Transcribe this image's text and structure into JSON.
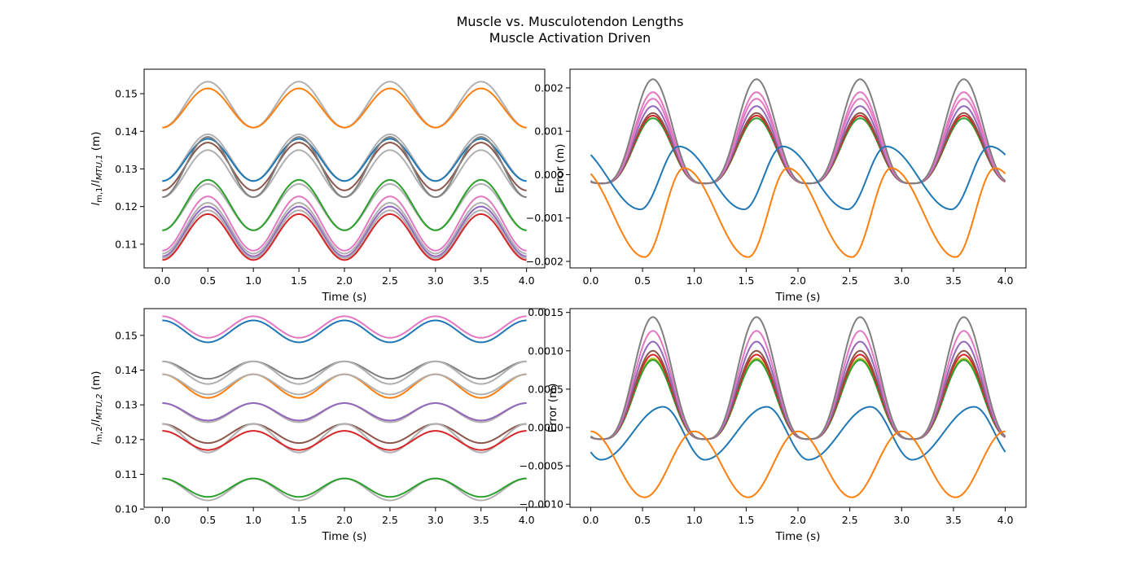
{
  "figure": {
    "title_line1": "Muscle vs. Musculotendon Lengths",
    "title_line2": "Muscle Activation Driven"
  },
  "chart_data": [
    {
      "type": "line",
      "id": "top-left",
      "xlabel": "Time (s)",
      "ylabel": "l_{m,1}/l_{MTU,1} (m)",
      "xlim": [
        -0.2,
        4.2
      ],
      "ylim": [
        0.1037,
        0.1565
      ],
      "xticks": [
        0.0,
        0.5,
        1.0,
        1.5,
        2.0,
        2.5,
        3.0,
        3.5,
        4.0
      ],
      "yticks": [
        0.11,
        0.12,
        0.13,
        0.14,
        0.15
      ],
      "tick_decimals": 2,
      "signals": [
        {
          "kind": "sin",
          "min": 0.141,
          "max": 0.1532,
          "period": 1.0,
          "peak": 0.5,
          "color": "#b0b0b0"
        },
        {
          "kind": "sin",
          "min": 0.141,
          "max": 0.1514,
          "period": 1.0,
          "peak": 0.5,
          "color": "#ff7f0e"
        },
        {
          "kind": "sin",
          "min": 0.1268,
          "max": 0.1392,
          "period": 1.0,
          "peak": 0.5,
          "color": "#b0b0b0"
        },
        {
          "kind": "sin",
          "min": 0.1268,
          "max": 0.138,
          "period": 1.0,
          "peak": 0.5,
          "color": "#1f77b4"
        },
        {
          "kind": "sin",
          "min": 0.1243,
          "max": 0.137,
          "period": 1.0,
          "peak": 0.5,
          "color": "#8c564b"
        },
        {
          "kind": "sin",
          "min": 0.1225,
          "max": 0.135,
          "period": 1.0,
          "peak": 0.5,
          "color": "#b0b0b0"
        },
        {
          "kind": "sin",
          "min": 0.1225,
          "max": 0.1385,
          "period": 1.0,
          "peak": 0.5,
          "color": "#7f7f7f"
        },
        {
          "kind": "sin",
          "min": 0.1137,
          "max": 0.126,
          "period": 1.0,
          "peak": 0.5,
          "color": "#b0b0b0"
        },
        {
          "kind": "sin",
          "min": 0.1137,
          "max": 0.1271,
          "period": 1.0,
          "peak": 0.5,
          "color": "#2ca02c"
        },
        {
          "kind": "sin",
          "min": 0.1083,
          "max": 0.1227,
          "period": 1.0,
          "peak": 0.5,
          "color": "#e377c2"
        },
        {
          "kind": "sin",
          "min": 0.1075,
          "max": 0.121,
          "period": 1.0,
          "peak": 0.5,
          "color": "#b0b0b0"
        },
        {
          "kind": "sin",
          "min": 0.1068,
          "max": 0.12,
          "period": 1.0,
          "peak": 0.5,
          "color": "#9467bd"
        },
        {
          "kind": "sin",
          "min": 0.1063,
          "max": 0.119,
          "period": 1.0,
          "peak": 0.5,
          "color": "#b0b0b0"
        },
        {
          "kind": "sin",
          "min": 0.1058,
          "max": 0.118,
          "period": 1.0,
          "peak": 0.5,
          "color": "#d62728"
        }
      ]
    },
    {
      "type": "line",
      "id": "top-right",
      "xlabel": "Time (s)",
      "ylabel": "Error (m)",
      "xlim": [
        -0.2,
        4.2
      ],
      "ylim": [
        -0.00215,
        0.00243
      ],
      "xticks": [
        0.0,
        0.5,
        1.0,
        1.5,
        2.0,
        2.5,
        3.0,
        3.5,
        4.0
      ],
      "yticks": [
        -0.002,
        -0.001,
        0.0,
        0.001,
        0.002
      ],
      "tick_decimals": 3,
      "signals": [
        {
          "kind": "err",
          "min": -0.0002,
          "max": 0.0013,
          "period": 1.0,
          "peak": 0.6,
          "color": "#2ca02c"
        },
        {
          "kind": "err",
          "min": -0.0002,
          "max": 0.00136,
          "period": 1.0,
          "peak": 0.6,
          "color": "#d62728"
        },
        {
          "kind": "err",
          "min": -0.0002,
          "max": 0.00142,
          "period": 1.0,
          "peak": 0.6,
          "color": "#8c564b"
        },
        {
          "kind": "err",
          "min": -0.0002,
          "max": 0.00158,
          "period": 1.0,
          "peak": 0.6,
          "color": "#9467bd"
        },
        {
          "kind": "err",
          "min": -0.0002,
          "max": 0.00175,
          "period": 1.0,
          "peak": 0.6,
          "color": "#e377c2"
        },
        {
          "kind": "err",
          "min": -0.0002,
          "max": 0.0019,
          "period": 1.0,
          "peak": 0.6,
          "color": "#e377c2"
        },
        {
          "kind": "err",
          "min": -0.0002,
          "max": 0.0022,
          "period": 1.0,
          "peak": 0.6,
          "color": "#7f7f7f"
        },
        {
          "kind": "err2",
          "min": -0.0008,
          "max": 0.00065,
          "period": 1.0,
          "peak": 0.85,
          "trough": 0.48,
          "color": "#1f77b4"
        },
        {
          "kind": "err2",
          "min": -0.0019,
          "max": 0.00015,
          "period": 1.0,
          "peak": 0.9,
          "trough": 0.52,
          "color": "#ff7f0e"
        }
      ]
    },
    {
      "type": "line",
      "id": "bottom-left",
      "xlabel": "Time (s)",
      "ylabel": "l_{m,2}/l_{MTU,2} (m)",
      "xlim": [
        -0.2,
        4.2
      ],
      "ylim": [
        0.1005,
        0.1577
      ],
      "xticks": [
        0.0,
        0.5,
        1.0,
        1.5,
        2.0,
        2.5,
        3.0,
        3.5,
        4.0
      ],
      "yticks": [
        0.1,
        0.11,
        0.12,
        0.13,
        0.14,
        0.15
      ],
      "tick_decimals": 2,
      "signals": [
        {
          "kind": "cos",
          "min": 0.1493,
          "max": 0.1555,
          "period": 1.0,
          "peak": 0.0,
          "color": "#e377c2"
        },
        {
          "kind": "cos",
          "min": 0.148,
          "max": 0.1543,
          "period": 1.0,
          "peak": 0.0,
          "color": "#1f77b4"
        },
        {
          "kind": "cos",
          "min": 0.1375,
          "max": 0.1425,
          "period": 1.0,
          "peak": 0.0,
          "color": "#7f7f7f"
        },
        {
          "kind": "cos",
          "min": 0.136,
          "max": 0.1425,
          "period": 1.0,
          "peak": 0.0,
          "color": "#b0b0b0"
        },
        {
          "kind": "cos",
          "min": 0.132,
          "max": 0.1388,
          "period": 1.0,
          "peak": 0.0,
          "color": "#ff7f0e"
        },
        {
          "kind": "cos",
          "min": 0.133,
          "max": 0.1388,
          "period": 1.0,
          "peak": 0.0,
          "color": "#b0b0b0"
        },
        {
          "kind": "cos",
          "min": 0.125,
          "max": 0.1305,
          "period": 1.0,
          "peak": 0.0,
          "color": "#b0b0b0"
        },
        {
          "kind": "cos",
          "min": 0.1255,
          "max": 0.1305,
          "period": 1.0,
          "peak": 0.0,
          "color": "#9467bd"
        },
        {
          "kind": "cos",
          "min": 0.119,
          "max": 0.1245,
          "period": 1.0,
          "peak": 0.0,
          "color": "#8c564b"
        },
        {
          "kind": "cos",
          "min": 0.1163,
          "max": 0.1245,
          "period": 1.0,
          "peak": 0.0,
          "color": "#b0b0b0"
        },
        {
          "kind": "cos",
          "min": 0.117,
          "max": 0.1225,
          "period": 1.0,
          "peak": 0.0,
          "color": "#d62728"
        },
        {
          "kind": "cos",
          "min": 0.1025,
          "max": 0.1088,
          "period": 1.0,
          "peak": 0.0,
          "color": "#b0b0b0"
        },
        {
          "kind": "cos",
          "min": 0.1035,
          "max": 0.1088,
          "period": 1.0,
          "peak": 0.0,
          "color": "#2ca02c"
        }
      ]
    },
    {
      "type": "line",
      "id": "bottom-right",
      "xlabel": "Time (s)",
      "ylabel": "Error (m)",
      "xlim": [
        -0.2,
        4.2
      ],
      "ylim": [
        -0.00104,
        0.00155
      ],
      "xticks": [
        0.0,
        0.5,
        1.0,
        1.5,
        2.0,
        2.5,
        3.0,
        3.5,
        4.0
      ],
      "yticks": [
        -0.001,
        -0.0005,
        0.0,
        0.0005,
        0.001,
        0.0015
      ],
      "tick_decimals": 4,
      "signals": [
        {
          "kind": "err",
          "min": -0.00015,
          "max": 0.0009,
          "period": 1.0,
          "peak": 0.6,
          "color": "#bcbd22"
        },
        {
          "kind": "err",
          "min": -0.00015,
          "max": 0.00088,
          "period": 1.0,
          "peak": 0.6,
          "color": "#2ca02c"
        },
        {
          "kind": "err",
          "min": -0.00015,
          "max": 0.00095,
          "period": 1.0,
          "peak": 0.6,
          "color": "#d62728"
        },
        {
          "kind": "err",
          "min": -0.00015,
          "max": 0.001,
          "period": 1.0,
          "peak": 0.6,
          "color": "#8c564b"
        },
        {
          "kind": "err",
          "min": -0.00015,
          "max": 0.00112,
          "period": 1.0,
          "peak": 0.6,
          "color": "#9467bd"
        },
        {
          "kind": "err",
          "min": -0.00015,
          "max": 0.00126,
          "period": 1.0,
          "peak": 0.6,
          "color": "#e377c2"
        },
        {
          "kind": "err",
          "min": -0.00015,
          "max": 0.00144,
          "period": 1.0,
          "peak": 0.6,
          "color": "#7f7f7f"
        },
        {
          "kind": "err2",
          "min": -0.00042,
          "max": 0.00027,
          "period": 1.0,
          "peak": 0.7,
          "trough": 0.1,
          "color": "#1f77b4"
        },
        {
          "kind": "err2",
          "min": -0.00091,
          "max": -5e-05,
          "period": 1.0,
          "peak": 0.0,
          "trough": 0.52,
          "color": "#ff7f0e"
        }
      ]
    }
  ]
}
